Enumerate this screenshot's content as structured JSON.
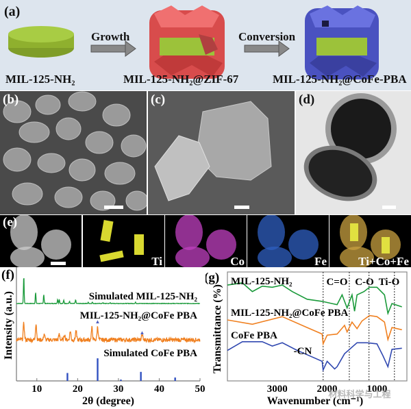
{
  "panel_a": {
    "label": "(a)",
    "step1_label": "Growth",
    "step2_label": "Conversion",
    "material1": "MIL-125-NH₂",
    "material2": "MIL-125-NH₂@ZIF-67",
    "material3": "MIL-125-NH₂@CoFe-PBA",
    "colors": {
      "mil125": "#9cc23a",
      "zif67": "#e05858",
      "cofe_pba": "#5058c8"
    }
  },
  "panel_b": {
    "label": "(b)"
  },
  "panel_c": {
    "label": "(c)"
  },
  "panel_d": {
    "label": "(d)"
  },
  "panel_e": {
    "label": "(e)",
    "maps": [
      {
        "element": "",
        "color": "#cccccc"
      },
      {
        "element": "Ti",
        "color": "#d8d830"
      },
      {
        "element": "Co",
        "color": "#c040c0"
      },
      {
        "element": "Fe",
        "color": "#2f5fc0"
      },
      {
        "element": "Ti+Co+Fe",
        "color": "#c8a040"
      }
    ]
  },
  "chart_data": [
    {
      "panel_label": "(f)",
      "type": "line",
      "xlabel": "2θ (degree)",
      "ylabel": "Intensity (a.u.)",
      "xlim": [
        5,
        50
      ],
      "xticks": [
        10,
        20,
        30,
        40,
        50
      ],
      "grid": false,
      "series": [
        {
          "name": "Simulated MIL-125-NH₂",
          "color": "#1a9a3a",
          "style": "line",
          "peaks_2theta": [
            6.8,
            9.7,
            11.7,
            15.1,
            15.5,
            16.6,
            18.0,
            19.5,
            22.6,
            23.6,
            26.2,
            28.0,
            34.2
          ],
          "relative_intensity": [
            1.0,
            0.4,
            0.33,
            0.15,
            0.15,
            0.12,
            0.08,
            0.14,
            0.04,
            0.05,
            0.03,
            0.03,
            0.04
          ]
        },
        {
          "name": "MIL-125-NH₂@CoFe PBA",
          "color": "#f08020",
          "style": "line",
          "peaks_2theta": [
            6.8,
            9.8,
            11.8,
            15.5,
            16.8,
            18.2,
            19.6,
            23.5,
            24.9,
            35.8
          ],
          "relative_intensity": [
            0.55,
            0.55,
            0.2,
            0.18,
            0.18,
            0.3,
            0.3,
            0.4,
            0.45,
            0.2
          ]
        },
        {
          "name": "Simulated CoFe PBA",
          "color": "#3050c0",
          "style": "stick",
          "peaks_2theta": [
            17.5,
            24.9,
            30.6,
            35.5,
            43.9
          ],
          "relative_intensity": [
            0.35,
            1.0,
            0.06,
            0.4,
            0.15
          ]
        }
      ],
      "markers": {
        "symbol": "▲",
        "color": "#5060c0",
        "positions_2theta": [
          24.9,
          35.8
        ]
      }
    },
    {
      "panel_label": "(g)",
      "type": "line",
      "xlabel": "Wavenumber (cm⁻¹)",
      "ylabel": "Transmittance (%)",
      "xlim": [
        4000,
        400
      ],
      "xticks": [
        3000,
        2000,
        1000
      ],
      "grid": false,
      "annotations": [
        {
          "text": "-CN",
          "wavenumber": 2080
        },
        {
          "text": "C=O",
          "wavenumber": 1555
        },
        {
          "text": "C-O",
          "wavenumber": 1160
        },
        {
          "text": "Ti-O",
          "wavenumber": 650
        }
      ],
      "series": [
        {
          "name": "MIL-125-NH₂",
          "color": "#1a9a3a",
          "x": [
            4000,
            3700,
            3500,
            3300,
            3100,
            2900,
            2700,
            2400,
            2100,
            1900,
            1800,
            1700,
            1600,
            1500,
            1450,
            1400,
            1260,
            1150,
            1000,
            850,
            780,
            700,
            500
          ],
          "y": [
            88,
            90,
            82,
            87,
            86,
            88,
            82,
            75,
            73,
            71,
            70,
            79,
            67,
            79,
            64,
            79,
            82,
            86,
            86,
            79,
            62,
            71,
            68
          ]
        },
        {
          "name": "MIL-125-NH₂@CoFe PBA",
          "color": "#f08020",
          "x": [
            4000,
            3500,
            2900,
            2400,
            2100,
            2080,
            2000,
            1800,
            1650,
            1600,
            1500,
            1400,
            1300,
            1150,
            1000,
            850,
            780,
            700,
            500
          ],
          "y": [
            56,
            52,
            59,
            49,
            43,
            34,
            42,
            43,
            51,
            45,
            54,
            48,
            55,
            60,
            59,
            54,
            38,
            49,
            47
          ]
        },
        {
          "name": "CoFe PBA",
          "color": "#3048b0",
          "x": [
            4000,
            3700,
            3300,
            3100,
            2900,
            2600,
            2400,
            2100,
            2080,
            2000,
            1850,
            1800,
            1650,
            1400,
            1200,
            1000,
            880,
            780,
            700,
            500
          ],
          "y": [
            28,
            36,
            36,
            32,
            35,
            28,
            24,
            18,
            10,
            18,
            11,
            13,
            25,
            35,
            35,
            34,
            23,
            13,
            29,
            30
          ]
        }
      ]
    }
  ],
  "watermark": "材料科学与工程"
}
